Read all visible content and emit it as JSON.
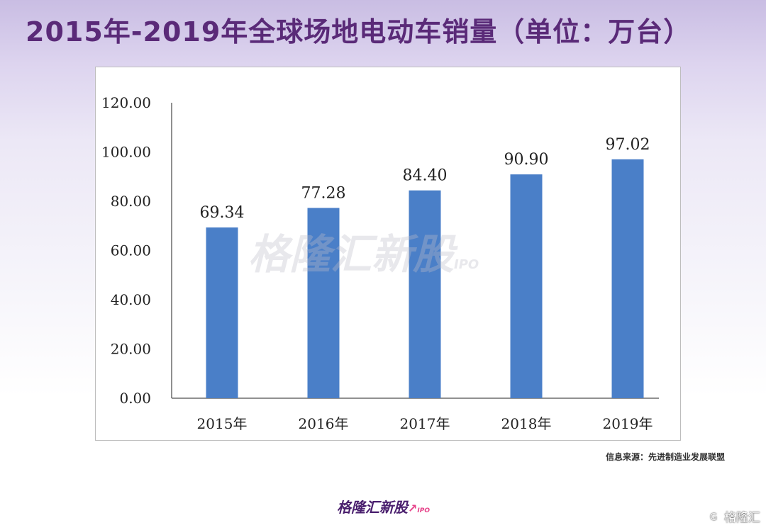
{
  "header": {
    "title": "2015年-2019年全球场地电动车销量（单位：万台）"
  },
  "source": {
    "text": "信息来源：先进制造业发展联盟"
  },
  "branding": {
    "name": "格隆汇新股",
    "suffix": "IPO",
    "corner": "格隆汇",
    "corner_icon": "G",
    "accent_color": "#e6438a",
    "brand_color": "#4a1f6e"
  },
  "chart_data": {
    "type": "bar",
    "categories": [
      "2015年",
      "2016年",
      "2017年",
      "2018年",
      "2019年"
    ],
    "values": [
      69.34,
      77.28,
      84.4,
      90.9,
      97.02
    ],
    "value_labels": [
      "69.34",
      "77.28",
      "84.40",
      "90.90",
      "97.02"
    ],
    "yticks": [
      "0.00",
      "20.00",
      "40.00",
      "60.00",
      "80.00",
      "100.00",
      "120.00"
    ],
    "ylim": [
      0,
      120
    ],
    "bar_color": "#4a7fc8",
    "grid": false,
    "legend": "none"
  }
}
